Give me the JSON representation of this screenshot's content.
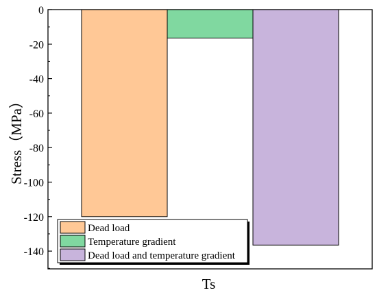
{
  "chart_data": {
    "type": "bar",
    "title": "",
    "xlabel": "Ts",
    "ylabel": "Stress（MPa）",
    "ylim": [
      -152,
      0
    ],
    "yticks": [
      0,
      -20,
      -40,
      -60,
      -80,
      -100,
      -120,
      -140
    ],
    "grid": false,
    "legend_position": "bottom-left",
    "categories": [
      "Ts"
    ],
    "series": [
      {
        "name": "Dead load",
        "values": [
          -120
        ],
        "color": "#FFC896"
      },
      {
        "name": "Temperature gradient",
        "values": [
          -16.5
        ],
        "color": "#80D8A0"
      },
      {
        "name": "Dead load and temperature gradient",
        "values": [
          -136.5
        ],
        "color": "#C8B4DC"
      }
    ]
  }
}
